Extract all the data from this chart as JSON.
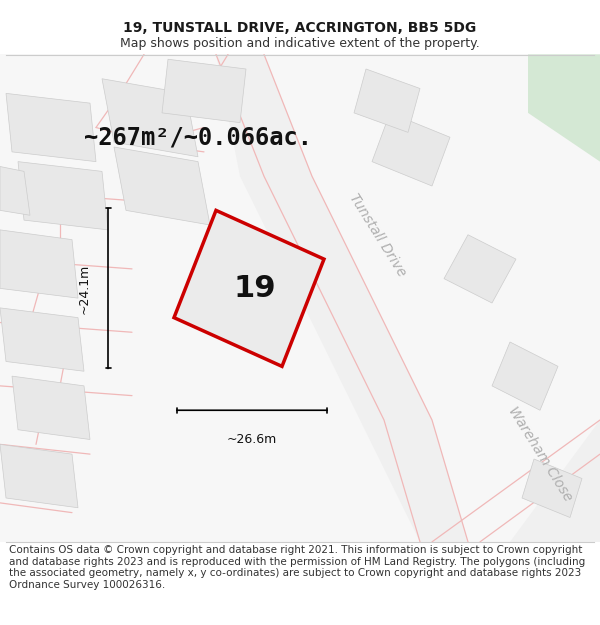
{
  "title_line1": "19, TUNSTALL DRIVE, ACCRINGTON, BB5 5DG",
  "title_line2": "Map shows position and indicative extent of the property.",
  "area_text": "~267m²/~0.066ac.",
  "property_number": "19",
  "dim_vertical": "~24.1m",
  "dim_horizontal": "~26.6m",
  "street_label1": "Tunstall Drive",
  "street_label2": "Wareham Close",
  "footer_text": "Contains OS data © Crown copyright and database right 2021. This information is subject to Crown copyright and database rights 2023 and is reproduced with the permission of HM Land Registry. The polygons (including the associated geometry, namely x, y co-ordinates) are subject to Crown copyright and database rights 2023 Ordnance Survey 100026316.",
  "bg_color": "#ffffff",
  "map_bg": "#f7f7f7",
  "road_color": "#f0b8b8",
  "building_color": "#e8e8e8",
  "building_edge": "#cccccc",
  "plot_fill": "#ebebeb",
  "plot_edge": "#cc0000",
  "green_color": "#d4e8d4",
  "title_fontsize": 10,
  "subtitle_fontsize": 9,
  "area_fontsize": 17,
  "dim_fontsize": 9,
  "footer_fontsize": 7.5,
  "street_label_fontsize": 10
}
